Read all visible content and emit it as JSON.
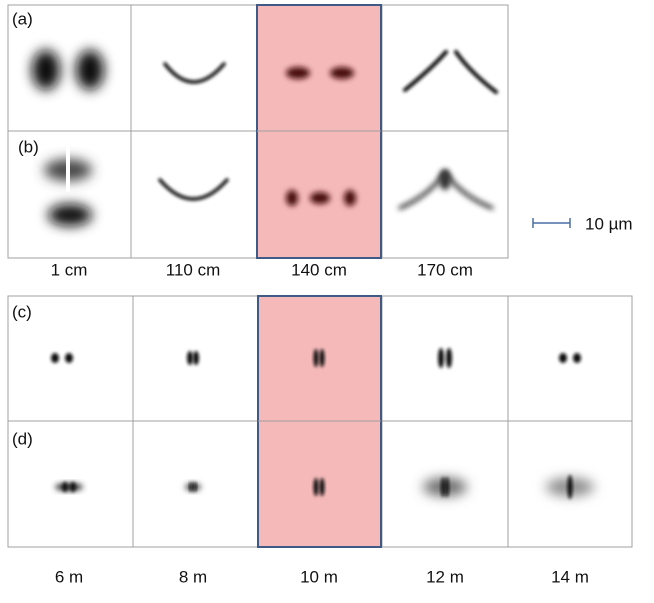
{
  "panels": {
    "a": "(a)",
    "b": "(b)",
    "c": "(c)",
    "d": "(d)"
  },
  "top_distances": [
    "1 cm",
    "110 cm",
    "140 cm",
    "170 cm"
  ],
  "bottom_distances": [
    "6 m",
    "8 m",
    "10 m",
    "12 m",
    "14 m"
  ],
  "scale_bar": "10 µm"
}
